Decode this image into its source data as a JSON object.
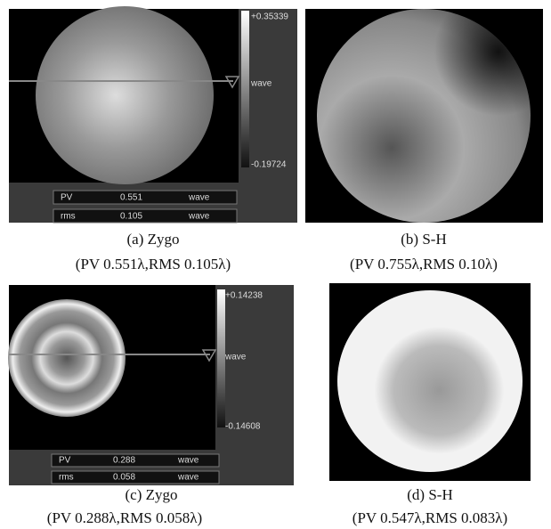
{
  "panels": [
    {
      "colorbar": {
        "max": "+0.35339",
        "unit": "wave",
        "min": "-0.19724"
      },
      "table": {
        "rows": [
          [
            "PV",
            "0.551",
            "wave"
          ],
          [
            "rms",
            "0.105",
            "wave"
          ]
        ]
      },
      "caption": [
        "(a) Zygo",
        "(PV 0.551λ,RMS 0.105λ)"
      ]
    },
    {
      "caption": [
        "(b) S-H",
        "(PV 0.755λ,RMS 0.10λ)"
      ]
    },
    {
      "colorbar": {
        "max": "+0.14238",
        "unit": "wave",
        "min": "-0.14608"
      },
      "table": {
        "rows": [
          [
            "PV",
            "0.288",
            "wave"
          ],
          [
            "rms",
            "0.058",
            "wave"
          ]
        ]
      },
      "caption": [
        "(c) Zygo",
        "(PV 0.288λ,RMS 0.058λ)"
      ]
    },
    {
      "caption": [
        "(d) S-H",
        "(PV 0.547λ,RMS 0.083λ)"
      ]
    }
  ]
}
